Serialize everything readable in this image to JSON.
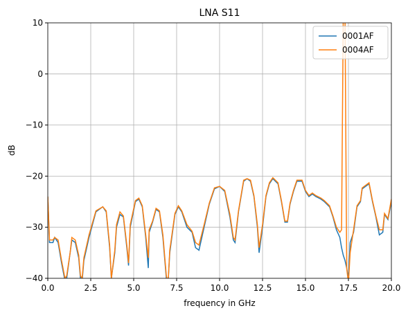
{
  "chart_data": {
    "type": "line",
    "title": "LNA S11",
    "xlabel": "frequency in GHz",
    "ylabel": "dB",
    "x": [
      0,
      0.1,
      0.3,
      0.4,
      0.6,
      0.8,
      1.0,
      1.1,
      1.3,
      1.4,
      1.6,
      1.8,
      1.9,
      2.0,
      2.1,
      2.4,
      2.8,
      3.2,
      3.4,
      3.6,
      3.7,
      3.9,
      4.0,
      4.2,
      4.4,
      4.6,
      4.7,
      4.8,
      5.1,
      5.3,
      5.5,
      5.7,
      5.85,
      5.9,
      6.1,
      6.3,
      6.5,
      6.7,
      6.9,
      7.0,
      7.1,
      7.4,
      7.6,
      7.8,
      8.1,
      8.4,
      8.6,
      8.8,
      9.1,
      9.4,
      9.7,
      10.0,
      10.3,
      10.6,
      10.8,
      10.9,
      11.1,
      11.4,
      11.6,
      11.8,
      12.0,
      12.2,
      12.3,
      12.5,
      12.7,
      12.9,
      13.1,
      13.4,
      13.6,
      13.8,
      13.95,
      14.1,
      14.3,
      14.5,
      14.8,
      15.0,
      15.2,
      15.4,
      15.6,
      15.9,
      16.1,
      16.4,
      16.6,
      16.8,
      17.0,
      17.1,
      17.2,
      17.3,
      17.4,
      17.5,
      17.6,
      17.8,
      18.0,
      18.2,
      18.3,
      18.5,
      18.7,
      18.9,
      19.1,
      19.3,
      19.5,
      19.6,
      19.8,
      20.0
    ],
    "series": [
      {
        "name": "0001AF",
        "color": "#1f77b4",
        "values": [
          -24,
          -33,
          -33,
          -32,
          -33,
          -37,
          -40.5,
          -40,
          -35,
          -32.5,
          -33,
          -36,
          -40,
          -40.5,
          -36.5,
          -32,
          -27,
          -26,
          -27,
          -34,
          -40,
          -35,
          -30,
          -27.5,
          -28,
          -34,
          -37.5,
          -30,
          -25,
          -24.5,
          -26,
          -32,
          -38,
          -31,
          -29,
          -26.5,
          -27,
          -32,
          -40,
          -41,
          -35,
          -27.5,
          -26,
          -27,
          -30,
          -31,
          -34,
          -34.5,
          -30,
          -25.5,
          -22.5,
          -22,
          -23,
          -28,
          -32.5,
          -33,
          -27,
          -21,
          -20.5,
          -21,
          -24,
          -30,
          -35,
          -30,
          -24,
          -21.5,
          -20.5,
          -21.5,
          -25,
          -29,
          -29,
          -25.5,
          -23,
          -21,
          -21,
          -23,
          -24,
          -23.5,
          -24,
          -24.5,
          -25,
          -26,
          -28,
          -30.5,
          -32,
          -34,
          -35.5,
          -36.5,
          -38,
          -40,
          -33,
          -31,
          -26,
          -25,
          -22.5,
          -22,
          -21.5,
          -25,
          -28,
          -31.5,
          -31,
          -27.5,
          -28.5,
          -25
        ]
      },
      {
        "name": "0004AF",
        "color": "#ff7f0e",
        "values": [
          -24,
          -32.5,
          -32.5,
          -32,
          -32.5,
          -36.5,
          -40,
          -39.5,
          -35,
          -32,
          -32.5,
          -35.5,
          -39.5,
          -40,
          -36,
          -31.5,
          -26.8,
          -26,
          -26.8,
          -33.5,
          -40,
          -34.5,
          -29.5,
          -27,
          -27.8,
          -33.5,
          -37,
          -29.5,
          -24.8,
          -24.3,
          -25.8,
          -31.5,
          -36,
          -30.5,
          -28.8,
          -26.3,
          -26.8,
          -31.5,
          -39.5,
          -41,
          -34.5,
          -27.3,
          -25.8,
          -26.8,
          -29.5,
          -30.8,
          -33,
          -33.5,
          -29.5,
          -25.3,
          -22.3,
          -22,
          -22.8,
          -27.5,
          -32,
          -32.5,
          -26.8,
          -20.8,
          -20.5,
          -20.8,
          -23.8,
          -29.5,
          -34,
          -29.5,
          -23.8,
          -21.3,
          -20.3,
          -21.3,
          -24.8,
          -28.8,
          -28.8,
          -25.3,
          -22.8,
          -20.8,
          -20.8,
          -22.8,
          -23.8,
          -23.3,
          -23.8,
          -24.3,
          -24.8,
          -25.8,
          -27.8,
          -30,
          -31,
          -30.5,
          12,
          12,
          -38,
          -41,
          -35,
          -30.5,
          -25.8,
          -24.8,
          -22.3,
          -21.8,
          -21.3,
          -24.8,
          -27.8,
          -30.5,
          -30.5,
          -27.3,
          -28.3,
          -24.5
        ]
      }
    ],
    "xlim": [
      0,
      20
    ],
    "ylim": [
      -40,
      10
    ],
    "xticks": [
      {
        "value": 0,
        "label": "0.0"
      },
      {
        "value": 2.5,
        "label": "2.5"
      },
      {
        "value": 5,
        "label": "5.0"
      },
      {
        "value": 7.5,
        "label": "7.5"
      },
      {
        "value": 10,
        "label": "10.0"
      },
      {
        "value": 12.5,
        "label": "12.5"
      },
      {
        "value": 15,
        "label": "15.0"
      },
      {
        "value": 17.5,
        "label": "17.5"
      },
      {
        "value": 20,
        "label": "20.0"
      }
    ],
    "yticks": [
      {
        "value": -40,
        "label": "−40"
      },
      {
        "value": -30,
        "label": "−30"
      },
      {
        "value": -20,
        "label": "−20"
      },
      {
        "value": -10,
        "label": "−10"
      },
      0,
      10
    ],
    "grid": true,
    "legend": "upper right"
  }
}
